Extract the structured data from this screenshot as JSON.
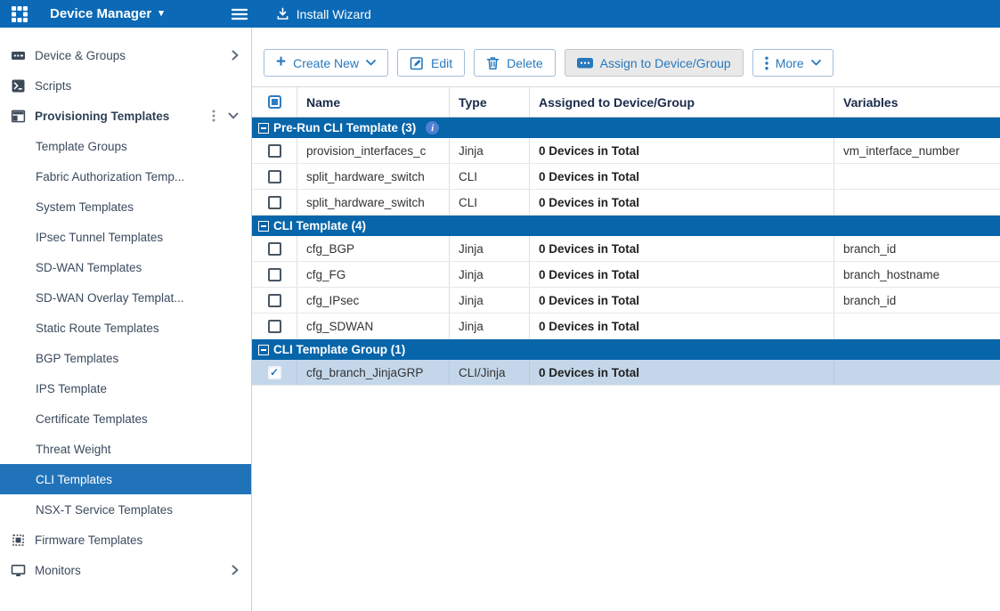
{
  "topbar": {
    "app_title": "Device Manager",
    "install_wizard": "Install Wizard"
  },
  "sidebar": {
    "items": [
      {
        "label": "Device & Groups",
        "icon": "device-groups",
        "expand": "right"
      },
      {
        "label": "Scripts",
        "icon": "scripts"
      },
      {
        "label": "Provisioning Templates",
        "icon": "provisioning-templates",
        "bold": true,
        "kebab": true,
        "expand": "down"
      },
      {
        "label": "Template Groups",
        "child": true
      },
      {
        "label": "Fabric Authorization Temp...",
        "child": true
      },
      {
        "label": "System Templates",
        "child": true
      },
      {
        "label": "IPsec Tunnel Templates",
        "child": true
      },
      {
        "label": "SD-WAN Templates",
        "child": true
      },
      {
        "label": "SD-WAN Overlay Templat...",
        "child": true
      },
      {
        "label": "Static Route Templates",
        "child": true
      },
      {
        "label": "BGP Templates",
        "child": true
      },
      {
        "label": "IPS Template",
        "child": true
      },
      {
        "label": "Certificate Templates",
        "child": true
      },
      {
        "label": "Threat Weight",
        "child": true
      },
      {
        "label": "CLI Templates",
        "child": true,
        "selected": true
      },
      {
        "label": "NSX-T Service Templates",
        "child": true
      },
      {
        "label": "Firmware Templates",
        "icon": "firmware-templates"
      },
      {
        "label": "Monitors",
        "icon": "monitors",
        "expand": "right"
      }
    ]
  },
  "toolbar": {
    "create_new": "Create New",
    "edit": "Edit",
    "delete": "Delete",
    "assign": "Assign to Device/Group",
    "more": "More"
  },
  "table": {
    "columns": {
      "name": "Name",
      "type": "Type",
      "assigned": "Assigned to Device/Group",
      "variables": "Variables"
    },
    "groups": [
      {
        "label": "Pre-Run CLI Template (3)",
        "info": true,
        "rows": [
          {
            "name": "provision_interfaces_c",
            "type": "Jinja",
            "assigned": "0 Devices in Total",
            "variables": "vm_interface_number"
          },
          {
            "name": "split_hardware_switch",
            "type": "CLI",
            "assigned": "0 Devices in Total",
            "variables": ""
          },
          {
            "name": "split_hardware_switch",
            "type": "CLI",
            "assigned": "0 Devices in Total",
            "variables": ""
          }
        ]
      },
      {
        "label": "CLI Template (4)",
        "rows": [
          {
            "name": "cfg_BGP",
            "type": "Jinja",
            "assigned": "0 Devices in Total",
            "variables": "branch_id"
          },
          {
            "name": "cfg_FG",
            "type": "Jinja",
            "assigned": "0 Devices in Total",
            "variables": "branch_hostname"
          },
          {
            "name": "cfg_IPsec",
            "type": "Jinja",
            "assigned": "0 Devices in Total",
            "variables": "branch_id"
          },
          {
            "name": "cfg_SDWAN",
            "type": "Jinja",
            "assigned": "0 Devices in Total",
            "variables": ""
          }
        ]
      },
      {
        "label": "CLI Template Group (1)",
        "rows": [
          {
            "name": "cfg_branch_JinjaGRP",
            "type": "CLI/Jinja",
            "assigned": "0 Devices in Total",
            "variables": "",
            "selected": true,
            "checked": true
          }
        ]
      }
    ]
  },
  "colors": {
    "topbar_blue": "#0b69b6",
    "group_header_blue": "#0765aa",
    "sidebar_selected_blue": "#2173b9",
    "selected_row_blue": "#c4d7ea",
    "accent_blue": "#2778bd"
  }
}
